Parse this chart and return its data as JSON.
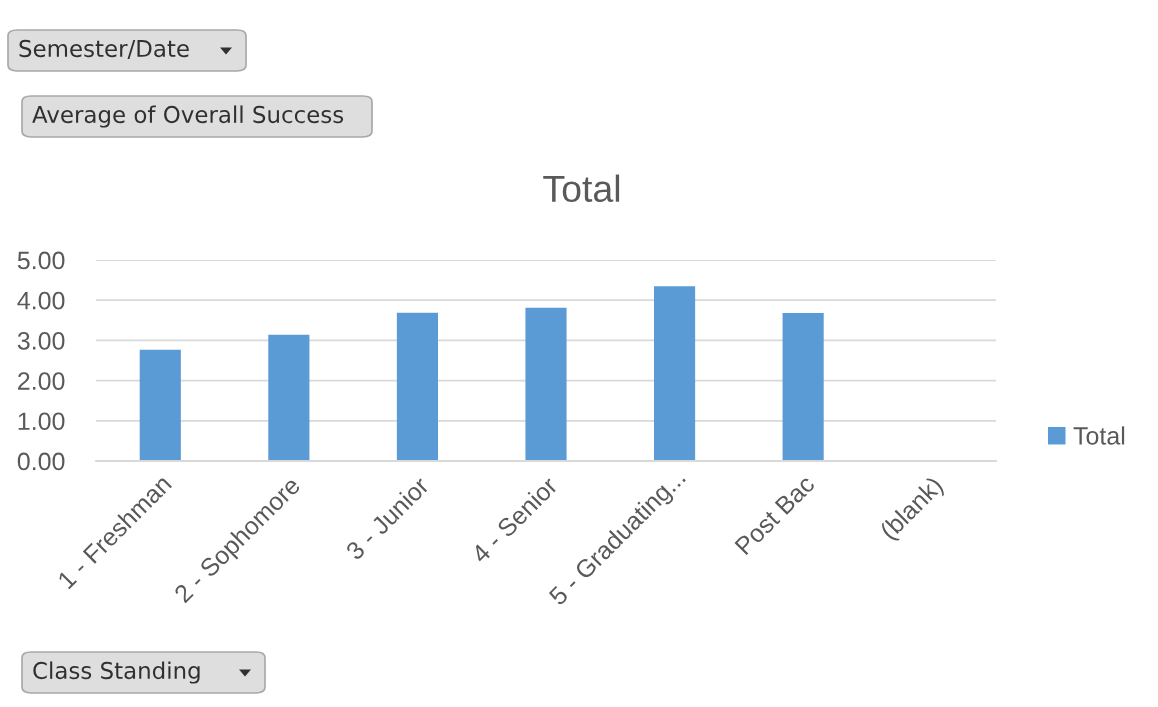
{
  "chart_data": {
    "type": "bar",
    "title": "Total",
    "categories": [
      "1 - Freshman",
      "2 - Sophomore",
      "3 - Junior",
      "4 - Senior",
      "5 - Graduating...",
      "Post Bac",
      "(blank)"
    ],
    "series": [
      {
        "name": "Total",
        "color": "#5b9bd5",
        "values": [
          2.77,
          3.14,
          3.69,
          3.81,
          4.35,
          3.68,
          null
        ]
      }
    ],
    "ylim": [
      0,
      5
    ],
    "yticks": [
      {
        "value": 0,
        "label": "0.00"
      },
      {
        "value": 1,
        "label": "1.00"
      },
      {
        "value": 2,
        "label": "2.00"
      },
      {
        "value": 3,
        "label": "3.00"
      },
      {
        "value": 4,
        "label": "4.00"
      },
      {
        "value": 5,
        "label": "5.00"
      }
    ],
    "grid": "y",
    "legend": "right",
    "annotations": [
      "Semester/Date",
      "Average of Overall Success",
      "Class Standing"
    ]
  }
}
